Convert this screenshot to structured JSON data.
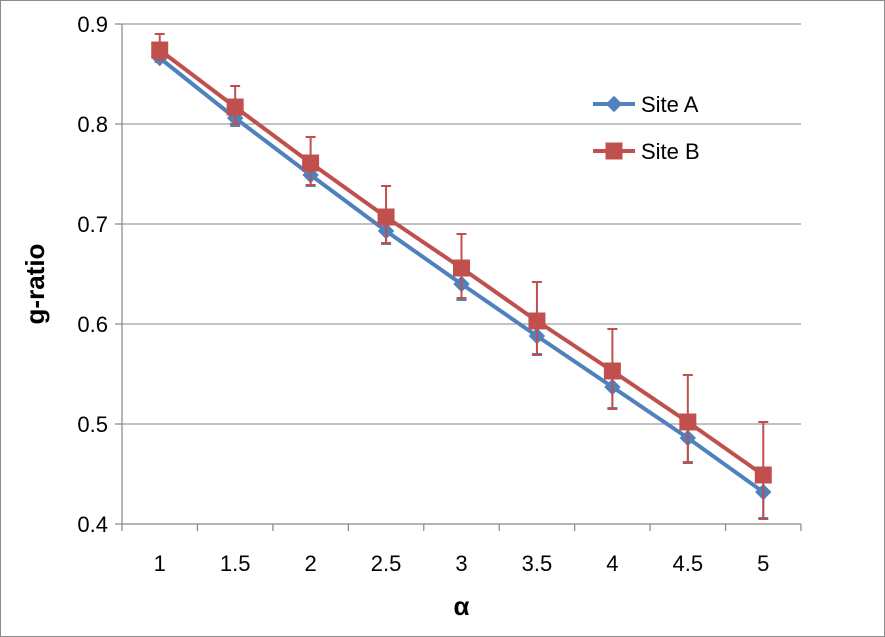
{
  "chart_data": {
    "type": "line",
    "title": "",
    "xlabel": "α",
    "ylabel": "g-ratio",
    "x": [
      1,
      1.5,
      2,
      2.5,
      3,
      3.5,
      4,
      4.5,
      5
    ],
    "x_tick_labels": [
      "1",
      "1.5",
      "2",
      "2.5",
      "3",
      "3.5",
      "4",
      "4.5",
      "5"
    ],
    "y_ticks": [
      0.4,
      0.5,
      0.6,
      0.7,
      0.8,
      0.9
    ],
    "y_tick_labels": [
      "0.4",
      "0.5",
      "0.6",
      "0.7",
      "0.8",
      "0.9"
    ],
    "ylim": [
      0.4,
      0.9
    ],
    "grid": "horizontal",
    "legend_position": "top-right",
    "series": [
      {
        "name": "Site A",
        "color": "#4F81BD",
        "marker": "diamond",
        "values": [
          0.866,
          0.806,
          0.749,
          0.693,
          0.64,
          0.588,
          0.537,
          0.486,
          0.432
        ],
        "error_upper": [
          0.004,
          0.008,
          0.011,
          0.013,
          0.015,
          0.016,
          0.017,
          0.018,
          0.021
        ],
        "error_lower": [
          0.004,
          0.008,
          0.011,
          0.013,
          0.016,
          0.018,
          0.021,
          0.024,
          0.026
        ]
      },
      {
        "name": "Site B",
        "color": "#C0504D",
        "marker": "square",
        "values": [
          0.874,
          0.817,
          0.761,
          0.707,
          0.656,
          0.603,
          0.553,
          0.502,
          0.449
        ],
        "error_upper": [
          0.016,
          0.021,
          0.026,
          0.031,
          0.034,
          0.039,
          0.042,
          0.047,
          0.053
        ],
        "error_lower": [
          0.01,
          0.017,
          0.022,
          0.026,
          0.03,
          0.034,
          0.038,
          0.041,
          0.044
        ]
      }
    ]
  }
}
